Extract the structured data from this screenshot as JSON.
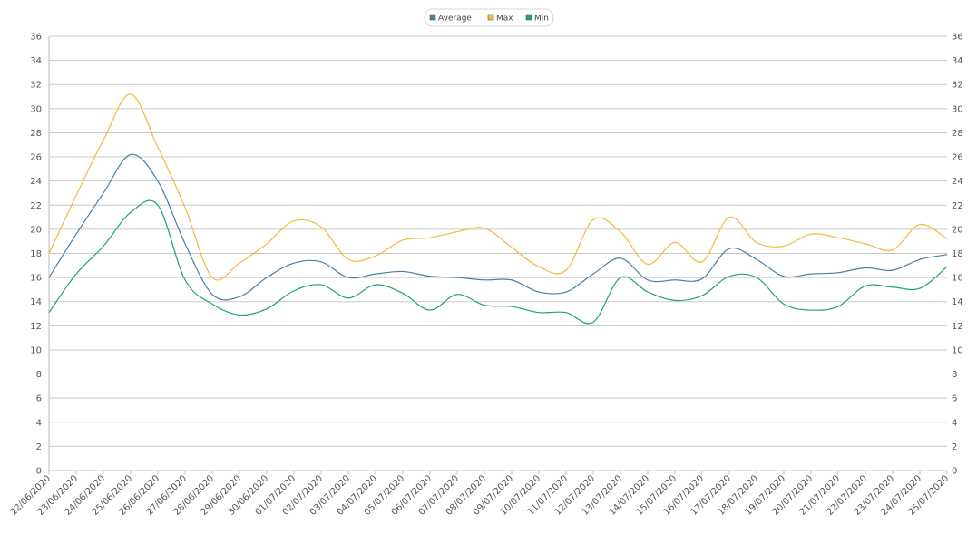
{
  "colors": {
    "Average": "#4a7fa6",
    "Max": "#f5b83c",
    "Min": "#1aa573",
    "grid": "#c8c8c8"
  },
  "chart_data": {
    "type": "line",
    "categories": [
      "22/06/2020",
      "23/06/2020",
      "24/06/2020",
      "25/06/2020",
      "26/06/2020",
      "27/06/2020",
      "28/06/2020",
      "29/06/2020",
      "30/06/2020",
      "01/07/2020",
      "02/07/2020",
      "03/07/2020",
      "04/07/2020",
      "05/07/2020",
      "06/07/2020",
      "07/07/2020",
      "08/07/2020",
      "09/07/2020",
      "10/07/2020",
      "11/07/2020",
      "12/07/2020",
      "13/07/2020",
      "14/07/2020",
      "15/07/2020",
      "16/07/2020",
      "17/07/2020",
      "18/07/2020",
      "19/07/2020",
      "20/07/2020",
      "21/07/2020",
      "22/07/2020",
      "23/07/2020",
      "24/07/2020",
      "25/07/2020"
    ],
    "series": [
      {
        "name": "Average",
        "values": [
          16.0,
          19.6,
          23.0,
          26.2,
          24.0,
          18.8,
          14.6,
          14.4,
          16.0,
          17.2,
          17.3,
          16.0,
          16.3,
          16.5,
          16.1,
          16.0,
          15.8,
          15.8,
          14.8,
          14.8,
          16.3,
          17.6,
          15.8,
          15.8,
          15.9,
          18.4,
          17.5,
          16.1,
          16.3,
          16.4,
          16.8,
          16.6,
          17.5,
          17.9
        ]
      },
      {
        "name": "Max",
        "values": [
          18.0,
          22.8,
          27.4,
          31.2,
          26.8,
          21.8,
          16.0,
          17.2,
          18.8,
          20.7,
          20.2,
          17.5,
          17.8,
          19.1,
          19.3,
          19.8,
          20.1,
          18.5,
          16.9,
          16.6,
          20.8,
          19.8,
          17.1,
          18.9,
          17.3,
          21.0,
          18.9,
          18.6,
          19.6,
          19.3,
          18.8,
          18.3,
          20.4,
          19.2
        ]
      },
      {
        "name": "Min",
        "values": [
          13.1,
          16.3,
          18.6,
          21.4,
          22.0,
          15.8,
          13.8,
          12.9,
          13.4,
          14.9,
          15.4,
          14.3,
          15.4,
          14.7,
          13.3,
          14.6,
          13.7,
          13.6,
          13.1,
          13.1,
          12.3,
          16.0,
          14.8,
          14.1,
          14.5,
          16.1,
          16.0,
          13.8,
          13.3,
          13.6,
          15.3,
          15.2,
          15.1,
          16.9
        ]
      }
    ],
    "yticks": [
      "0",
      "2",
      "4",
      "6",
      "8",
      "10",
      "12",
      "14",
      "16",
      "18",
      "20",
      "22",
      "24",
      "26",
      "28",
      "30",
      "32",
      "34",
      "36"
    ],
    "ylim": [
      0,
      36
    ],
    "grid": true,
    "legend_position": "top-center"
  }
}
